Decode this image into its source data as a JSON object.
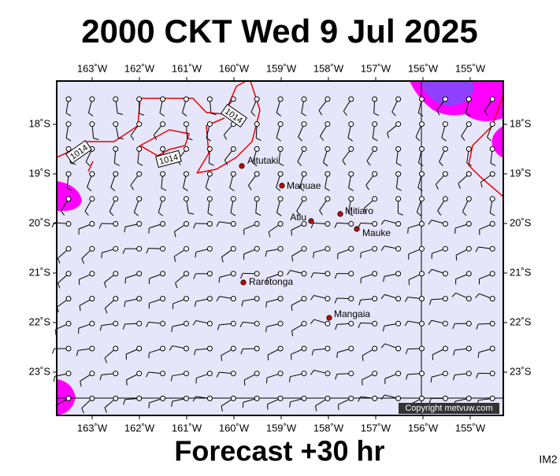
{
  "header": {
    "title": "2000 CKT Wed 9 Jul 2025"
  },
  "map": {
    "lon_ticks": [
      {
        "value": -163,
        "label": "163˚W"
      },
      {
        "value": -162,
        "label": "162˚W"
      },
      {
        "value": -161,
        "label": "161˚W"
      },
      {
        "value": -160,
        "label": "160˚W"
      },
      {
        "value": -159,
        "label": "159˚W"
      },
      {
        "value": -158,
        "label": "158˚W"
      },
      {
        "value": -157,
        "label": "157˚W"
      },
      {
        "value": -156,
        "label": "156˚W"
      },
      {
        "value": -155,
        "label": "155˚W"
      }
    ],
    "lat_ticks": [
      {
        "value": -18,
        "label": "18˚S"
      },
      {
        "value": -19,
        "label": "19˚S"
      },
      {
        "value": -20,
        "label": "20˚S"
      },
      {
        "value": -21,
        "label": "21˚S"
      },
      {
        "value": -22,
        "label": "22˚S"
      },
      {
        "value": -23,
        "label": "23˚S"
      }
    ],
    "places": [
      "Aitutaki",
      "Manuae",
      "Atiu",
      "Mitiaro",
      "Mauke",
      "Rarotonga",
      "Mangaia"
    ],
    "isobar_labels": [
      "1014",
      "1014",
      "1014"
    ],
    "copyright": "Copyright metvuw.com"
  },
  "footer": {
    "caption": "Forecast +30 hr",
    "code": "IM2"
  }
}
